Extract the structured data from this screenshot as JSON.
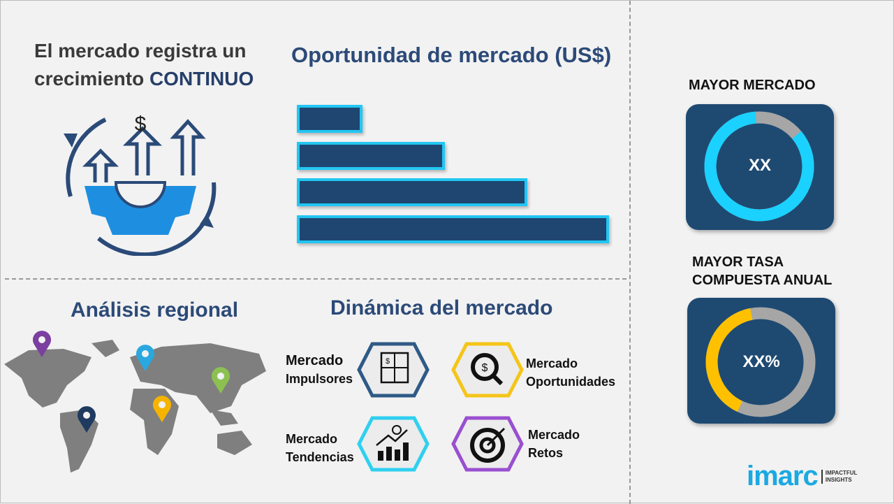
{
  "headline": {
    "line1": "El mercado registra un",
    "line2_prefix": "crecimiento ",
    "line2_accent": "CONTINUO"
  },
  "opportunity": {
    "title": "Oportunidad de mercado (US$)",
    "bar_levels": [
      1,
      2,
      3,
      4
    ]
  },
  "regional": {
    "title": "Análisis regional",
    "pins": [
      {
        "color": "#7b3fa0"
      },
      {
        "color": "#29a8e0"
      },
      {
        "color": "#8cc152"
      },
      {
        "color": "#f5b400"
      },
      {
        "color": "#1e3a5f"
      }
    ]
  },
  "dynamics": {
    "title": "Dinámica del mercado",
    "items": [
      {
        "line1": "Mercado",
        "line2": "Impulsores",
        "color": "#2e5a86",
        "icon": "puzzle-icon"
      },
      {
        "line1": "Mercado",
        "line2": "Oportunidades",
        "color": "#f5c518",
        "icon": "magnifier-dollar-icon"
      },
      {
        "line1": "Mercado",
        "line2": "Tendencias",
        "color": "#2fd0f0",
        "icon": "growth-chart-icon"
      },
      {
        "line1": "Mercado",
        "line2": "Retos",
        "color": "#9a4fd0",
        "icon": "target-icon"
      }
    ]
  },
  "largest_market": {
    "title": "MAYOR MERCADO",
    "value": "XX",
    "share": 0.85,
    "color": "#1ad1ff"
  },
  "highest_cagr": {
    "title_line1": "MAYOR TASA",
    "title_line2": "COMPUESTA ANUAL",
    "value": "XX%",
    "share": 0.4,
    "color": "#ffc000"
  },
  "logo": {
    "brand": "imarc",
    "tag1": "IMPACTFUL",
    "tag2": "INSIGHTS",
    "color": "#1ba9e1"
  }
}
